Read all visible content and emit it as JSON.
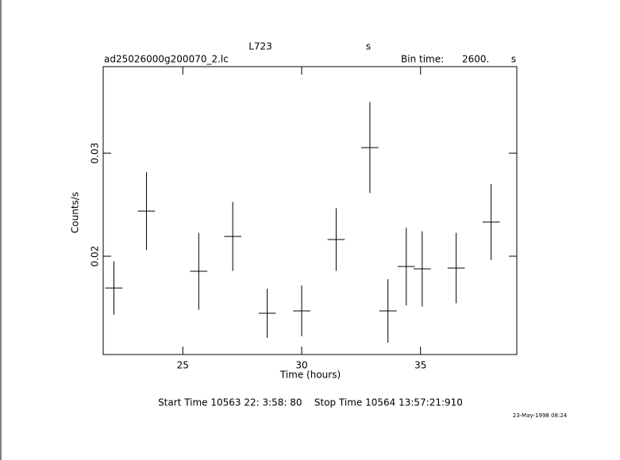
{
  "chart_data": {
    "type": "errorbar",
    "title": "L723",
    "title_unit": "s",
    "subtitle": "ad25026000g200070_2.lc",
    "bin_label": "Bin time:",
    "bin_value": "2600.",
    "bin_unit": "s",
    "x_label": "Time (hours)",
    "y_label": "Counts/s",
    "footer": "Start Time 10563 22: 3:58: 80    Stop Time 10564 13:57:21:910",
    "date_stamp": "23-May-1998 08:24",
    "xlim": [
      21.65,
      39.05
    ],
    "xticks": [
      25,
      30,
      35
    ],
    "ylim": [
      0.01046,
      0.0384
    ],
    "yticks": [
      0.02,
      0.03
    ],
    "color": "#000000",
    "x": [
      22.1,
      23.47,
      25.67,
      27.1,
      28.55,
      30.0,
      31.45,
      32.87,
      33.63,
      34.4,
      35.07,
      36.5,
      37.97
    ],
    "xerr": [
      0.361,
      0.361,
      0.361,
      0.361,
      0.361,
      0.361,
      0.361,
      0.361,
      0.361,
      0.361,
      0.361,
      0.361,
      0.361
    ],
    "values": [
      0.01692,
      0.02438,
      0.01854,
      0.02192,
      0.01446,
      0.01469,
      0.02162,
      0.03054,
      0.01469,
      0.019,
      0.01877,
      0.01885,
      0.02331
    ],
    "yerr": [
      0.00258,
      0.00377,
      0.00373,
      0.00335,
      0.00238,
      0.00246,
      0.00304,
      0.00442,
      0.00308,
      0.00377,
      0.00365,
      0.00342,
      0.00369
    ]
  }
}
